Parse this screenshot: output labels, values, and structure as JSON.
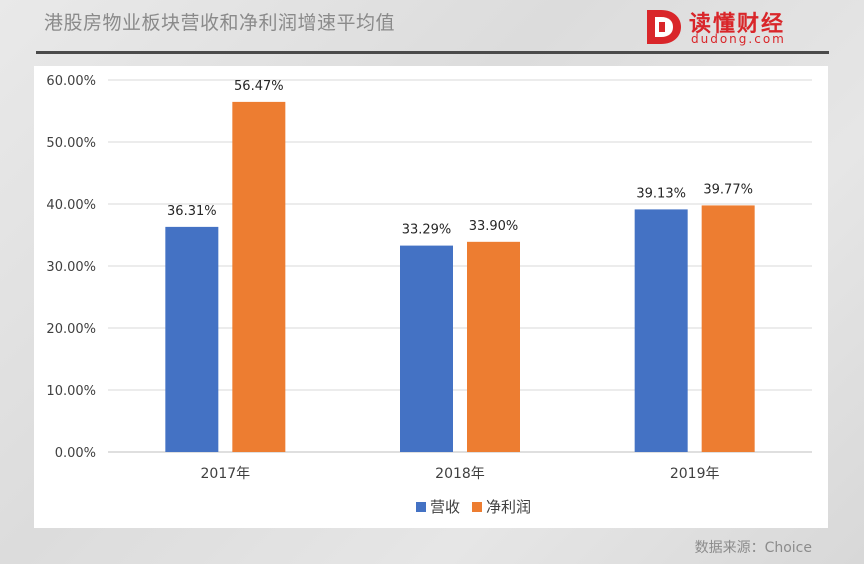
{
  "header": {
    "title": "港股房物业板块营收和净利润增速平均值",
    "logo_cn": "读懂财经",
    "logo_en": "dudong.com"
  },
  "source_note": "数据来源：Choice",
  "colors": {
    "series_revenue": "#4472C4",
    "series_profit": "#ED7D31",
    "logo_red": "#D9262A"
  },
  "chart_data": {
    "type": "bar",
    "title": "",
    "xlabel": "",
    "ylabel": "",
    "categories": [
      "2017年",
      "2018年",
      "2019年"
    ],
    "series": [
      {
        "name": "营收",
        "values": [
          36.31,
          33.29,
          39.13
        ],
        "labels": [
          "36.31%",
          "33.29%",
          "39.13%"
        ],
        "color": "#4472C4"
      },
      {
        "name": "净利润",
        "values": [
          56.47,
          33.9,
          39.77
        ],
        "labels": [
          "56.47%",
          "33.90%",
          "39.77%"
        ],
        "color": "#ED7D31"
      }
    ],
    "ylim": [
      0,
      60
    ],
    "yticks": [
      0,
      10,
      20,
      30,
      40,
      50,
      60
    ],
    "ytick_labels": [
      "0.00%",
      "10.00%",
      "20.00%",
      "30.00%",
      "40.00%",
      "50.00%",
      "60.00%"
    ],
    "grid": true,
    "legend_position": "bottom"
  }
}
